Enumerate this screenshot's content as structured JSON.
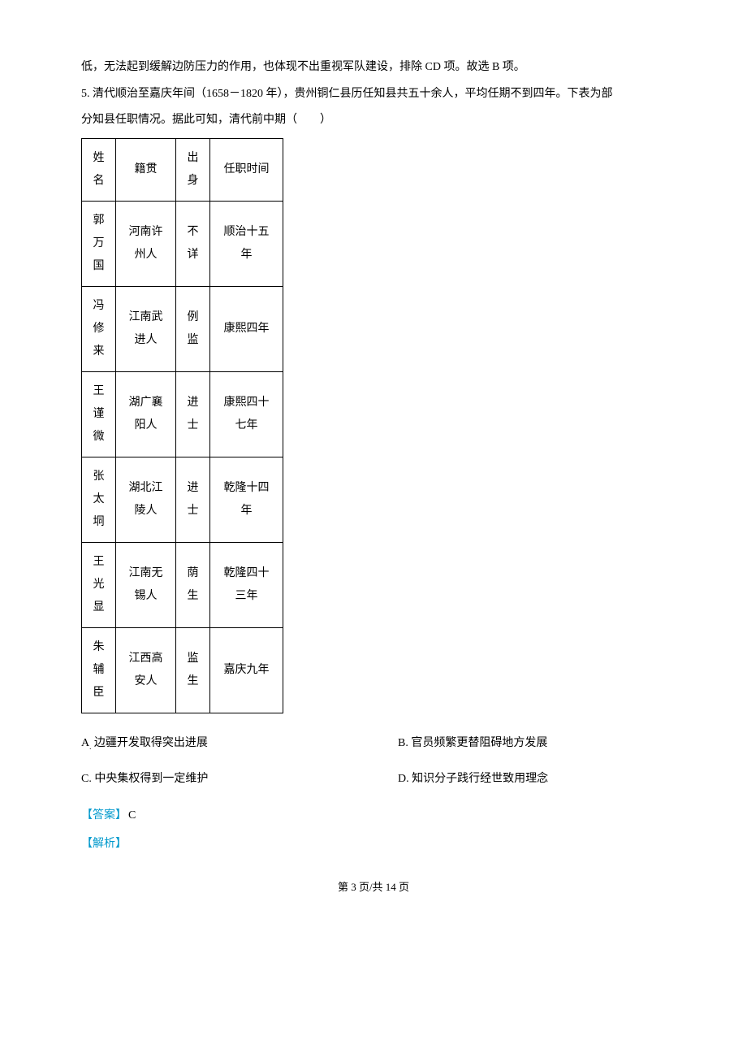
{
  "intro_line1": "低，无法起到缓解边防压力的作用，也体现不出重视军队建设，排除 CD 项。故选 B 项。",
  "q5_num": "5. ",
  "q5_text_a": "清代顺治至嘉庆年间（1658－1820 年），贵州铜仁县历任知县共五十余人，平均任期不到四年。下表为部",
  "q5_text_b": "分知县任职情况。据此可知，清代前中期（　　）",
  "table": {
    "headers": [
      "姓名",
      "籍贯",
      "出身",
      "任职时间"
    ],
    "rows": [
      [
        "郭万国",
        "河南许州人",
        "不详",
        "顺治十五年"
      ],
      [
        "冯修来",
        "江南武进人",
        "例监",
        "康熙四年"
      ],
      [
        "王谨微",
        "湖广襄阳人",
        "进士",
        "康熙四十七年"
      ],
      [
        "张太垌",
        "湖北江陵人",
        "进士",
        "乾隆十四年"
      ],
      [
        "王光显",
        "江南无锡人",
        "荫生",
        "乾隆四十三年"
      ],
      [
        "朱辅臣",
        "江西高安人",
        "监生",
        "嘉庆九年"
      ]
    ],
    "col_widths": [
      "42px",
      "74px",
      "42px",
      "90px"
    ]
  },
  "options": {
    "A": "边疆开发取得突出进展",
    "B": "官员频繁更替阻碍地方发展",
    "C": "中央集权得到一定维护",
    "D": "知识分子践行经世致用理念"
  },
  "answer": {
    "label": "【答案】",
    "value": "C"
  },
  "analysis": {
    "label": "【解析】"
  },
  "footer": "第 3 页/共 14 页",
  "colors": {
    "highlight": "#0099cc",
    "text": "#000000",
    "border": "#000000",
    "bg": "#ffffff"
  }
}
